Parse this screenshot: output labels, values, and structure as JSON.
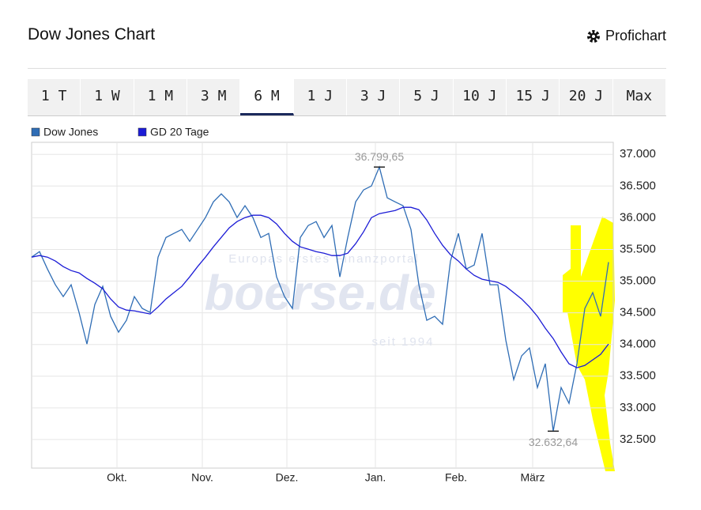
{
  "header": {
    "title": "Dow Jones Chart",
    "link": "Profichart"
  },
  "tabs": [
    "1 T",
    "1 W",
    "1 M",
    "3 M",
    "6 M",
    "1 J",
    "3 J",
    "5 J",
    "10 J",
    "15 J",
    "20 J",
    "Max"
  ],
  "active_tab": 4,
  "watermark": {
    "tagline": "Europas erstes Finanzportal",
    "logo": "boerse.de",
    "since": "seit 1994"
  },
  "chart_data": {
    "type": "line",
    "xlim": [
      0,
      73.6
    ],
    "xticks": [
      {
        "value": 10.8,
        "label": "Okt."
      },
      {
        "value": 21.6,
        "label": "Nov."
      },
      {
        "value": 32.3,
        "label": "Dez."
      },
      {
        "value": 43.5,
        "label": "Jan."
      },
      {
        "value": 53.7,
        "label": "Feb."
      },
      {
        "value": 63.4,
        "label": "März"
      }
    ],
    "ylim": [
      32050,
      37190
    ],
    "yticks": [
      {
        "value": 37000,
        "label": "37.000"
      },
      {
        "value": 36500,
        "label": "36.500"
      },
      {
        "value": 36000,
        "label": "36.000"
      },
      {
        "value": 35500,
        "label": "35.500"
      },
      {
        "value": 35000,
        "label": "35.000"
      },
      {
        "value": 34500,
        "label": "34.500"
      },
      {
        "value": 34000,
        "label": "34.000"
      },
      {
        "value": 33500,
        "label": "33.500"
      },
      {
        "value": 33000,
        "label": "33.000"
      },
      {
        "value": 32500,
        "label": "32.500"
      }
    ],
    "grid": true,
    "series": [
      {
        "name": "Dow Jones",
        "color": "#2f6db5",
        "values": [
          35379,
          35466,
          35192,
          34943,
          34756,
          34943,
          34506,
          34007,
          34631,
          34918,
          34444,
          34195,
          34382,
          34756,
          34569,
          34506,
          35379,
          35688,
          35753,
          35815,
          35628,
          35815,
          36003,
          36250,
          36377,
          36250,
          36003,
          36190,
          36003,
          35688,
          35753,
          35067,
          34756,
          34569,
          35688,
          35878,
          35940,
          35688,
          35878,
          35067,
          35688,
          36250,
          36439,
          36501,
          36799.65,
          36314,
          36250,
          36190,
          35815,
          34943,
          34382,
          34444,
          34319,
          35317,
          35753,
          35192,
          35254,
          35753,
          34943,
          34943,
          34070,
          33446,
          33820,
          33945,
          33321,
          33697,
          32632.64,
          33321,
          33072,
          33697,
          34569,
          34818,
          34444,
          35300
        ]
      },
      {
        "name": "GD 20 Tage",
        "color": "#1c1cd6",
        "values": [
          35379,
          35404,
          35379,
          35317,
          35229,
          35167,
          35130,
          35042,
          34967,
          34880,
          34718,
          34593,
          34543,
          34531,
          34506,
          34481,
          34593,
          34718,
          34818,
          34917,
          35067,
          35229,
          35379,
          35541,
          35691,
          35840,
          35940,
          36002,
          36040,
          36040,
          36002,
          35903,
          35753,
          35628,
          35541,
          35504,
          35466,
          35441,
          35404,
          35404,
          35441,
          35591,
          35778,
          36002,
          36065,
          36090,
          36115,
          36164,
          36164,
          36127,
          35965,
          35753,
          35566,
          35416,
          35317,
          35192,
          35092,
          35030,
          35005,
          34980,
          34917,
          34818,
          34718,
          34593,
          34444,
          34257,
          34094,
          33883,
          33696,
          33633,
          33671,
          33758,
          33845,
          34007
        ]
      }
    ],
    "annotations": [
      {
        "x": 44,
        "value": 36799.65,
        "label": "36.799,65"
      },
      {
        "x": 66,
        "value": 32632.64,
        "label": "32.632,64"
      }
    ]
  }
}
